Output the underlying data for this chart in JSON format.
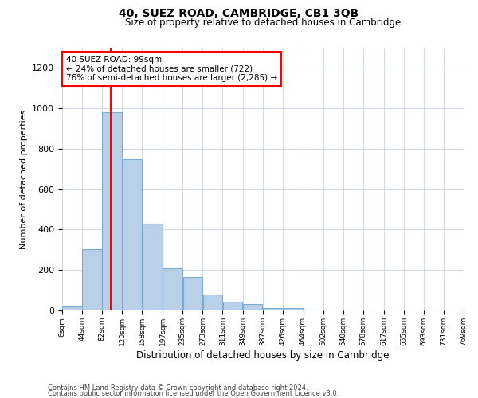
{
  "title": "40, SUEZ ROAD, CAMBRIDGE, CB1 3QB",
  "subtitle": "Size of property relative to detached houses in Cambridge",
  "xlabel": "Distribution of detached houses by size in Cambridge",
  "ylabel": "Number of detached properties",
  "bar_color": "#b8d0e8",
  "bar_edge_color": "#7aadd4",
  "bin_labels": [
    "6sqm",
    "44sqm",
    "82sqm",
    "120sqm",
    "158sqm",
    "197sqm",
    "235sqm",
    "273sqm",
    "311sqm",
    "349sqm",
    "387sqm",
    "426sqm",
    "464sqm",
    "502sqm",
    "540sqm",
    "578sqm",
    "617sqm",
    "655sqm",
    "693sqm",
    "731sqm",
    "769sqm"
  ],
  "bar_heights": [
    20,
    305,
    980,
    750,
    430,
    210,
    165,
    80,
    45,
    30,
    12,
    12,
    5,
    0,
    0,
    0,
    0,
    0,
    5,
    0
  ],
  "ylim": [
    0,
    1300
  ],
  "yticks": [
    0,
    200,
    400,
    600,
    800,
    1000,
    1200
  ],
  "annotation_text": "40 SUEZ ROAD: 99sqm\n← 24% of detached houses are smaller (722)\n76% of semi-detached houses are larger (2,285) →",
  "vline_x": 99,
  "footer1": "Contains HM Land Registry data © Crown copyright and database right 2024.",
  "footer2": "Contains public sector information licensed under the Open Government Licence v3.0.",
  "background_color": "#ffffff",
  "grid_color": "#d0d8e8"
}
